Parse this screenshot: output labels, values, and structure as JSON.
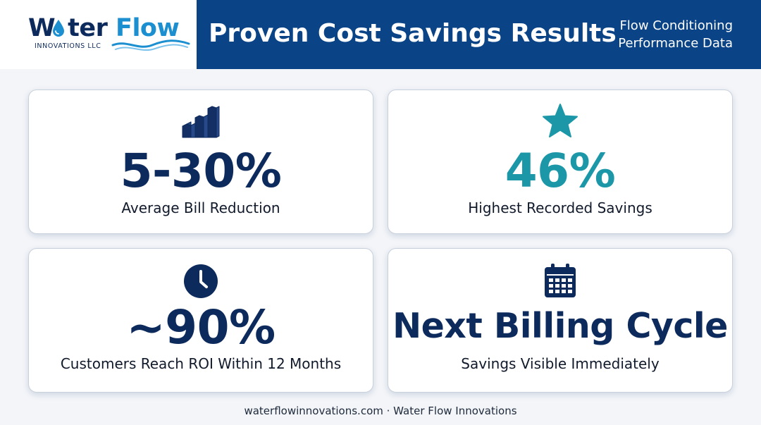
{
  "brand": {
    "name_part1": "W",
    "name_part2": "ter",
    "name_part3": "Flow",
    "subtitle": "INNOVATIONS LLC",
    "primary_color": "#0d2a5c",
    "accent_color": "#1b8fd0",
    "logo_icon": "water-drop-icon"
  },
  "header": {
    "title": "Proven Cost Savings Results",
    "subtitle_line1": "Flow Conditioning",
    "subtitle_line2": "Performance Data",
    "band_color": "#0a4386"
  },
  "cards": [
    {
      "icon": "bar-chart-icon",
      "value": "5-30%",
      "label": "Average Bill Reduction",
      "value_color": "#0d2a5c"
    },
    {
      "icon": "star-icon",
      "value": "46%",
      "label": "Highest Recorded Savings",
      "value_color": "#1b97a8"
    },
    {
      "icon": "clock-icon",
      "value": "~90%",
      "label": "Customers Reach ROI Within 12 Months",
      "value_color": "#0d2a5c"
    },
    {
      "icon": "calendar-icon",
      "value": "Next Billing Cycle",
      "label": "Savings Visible Immediately",
      "value_color": "#0d2a5c"
    }
  ],
  "footer": {
    "text": "waterflowinnovations.com · Water Flow Innovations"
  }
}
